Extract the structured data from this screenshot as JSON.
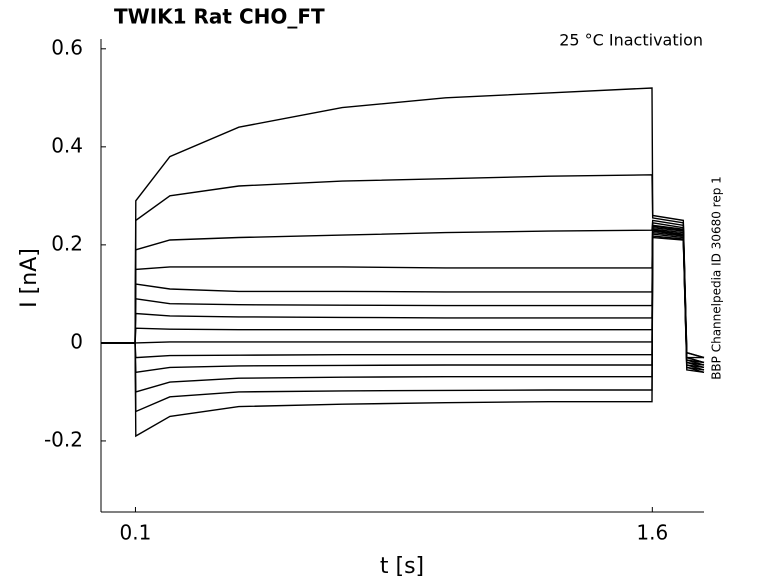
{
  "chart_data": {
    "type": "line",
    "title": "TWIK1  Rat  CHO_FT",
    "annotation": "25 °C  Inactivation",
    "side_note": "BBP Channelpedia ID 30680 rep 1",
    "x_label": "t [s]",
    "y_label": "I [nA]",
    "color": "#000000",
    "xlim": [
      0,
      1.75
    ],
    "ylim": [
      -0.345,
      0.62
    ],
    "xticks": [
      0.1,
      1.6
    ],
    "yticks": [
      -0.2,
      0,
      0.2,
      0.4,
      0.6
    ],
    "x": [
      0,
      0.099,
      0.101,
      0.2,
      0.4,
      0.7,
      1.0,
      1.3,
      1.599,
      1.601,
      1.69,
      1.7,
      1.75
    ],
    "series": [
      {
        "values": [
          0,
          0,
          0.29,
          0.38,
          0.44,
          0.48,
          0.5,
          0.51,
          0.52,
          0.26,
          0.25,
          -0.02,
          -0.03
        ]
      },
      {
        "values": [
          0,
          0,
          0.25,
          0.3,
          0.32,
          0.33,
          0.335,
          0.34,
          0.343,
          0.255,
          0.245,
          -0.02,
          -0.03
        ]
      },
      {
        "values": [
          0,
          0,
          0.19,
          0.21,
          0.215,
          0.22,
          0.225,
          0.228,
          0.23,
          0.25,
          0.24,
          -0.03,
          -0.03
        ]
      },
      {
        "values": [
          0,
          0,
          0.15,
          0.155,
          0.155,
          0.155,
          0.153,
          0.153,
          0.153,
          0.245,
          0.235,
          -0.03,
          -0.04
        ]
      },
      {
        "values": [
          0,
          0,
          0.12,
          0.11,
          0.105,
          0.105,
          0.104,
          0.104,
          0.104,
          0.24,
          0.232,
          -0.03,
          -0.04
        ]
      },
      {
        "values": [
          0,
          0,
          0.09,
          0.08,
          0.078,
          0.077,
          0.076,
          0.076,
          0.076,
          0.238,
          0.23,
          -0.035,
          -0.04
        ]
      },
      {
        "values": [
          0,
          0,
          0.06,
          0.055,
          0.053,
          0.052,
          0.051,
          0.051,
          0.051,
          0.235,
          0.228,
          -0.035,
          -0.045
        ]
      },
      {
        "values": [
          0,
          0,
          0.03,
          0.028,
          0.027,
          0.027,
          0.027,
          0.027,
          0.027,
          0.232,
          0.225,
          -0.04,
          -0.045
        ]
      },
      {
        "values": [
          0,
          0,
          0,
          0.002,
          0.002,
          0.002,
          0.002,
          0.002,
          0.002,
          0.23,
          0.222,
          -0.04,
          -0.05
        ]
      },
      {
        "values": [
          0,
          0,
          -0.03,
          -0.026,
          -0.025,
          -0.024,
          -0.024,
          -0.024,
          -0.024,
          0.228,
          0.22,
          -0.045,
          -0.05
        ]
      },
      {
        "values": [
          0,
          0,
          -0.06,
          -0.05,
          -0.047,
          -0.046,
          -0.045,
          -0.045,
          -0.045,
          0.225,
          0.218,
          -0.045,
          -0.055
        ]
      },
      {
        "values": [
          0,
          0,
          -0.1,
          -0.08,
          -0.072,
          -0.07,
          -0.069,
          -0.069,
          -0.069,
          0.222,
          0.215,
          -0.05,
          -0.055
        ]
      },
      {
        "values": [
          0,
          0,
          -0.14,
          -0.11,
          -0.1,
          -0.098,
          -0.097,
          -0.096,
          -0.096,
          0.218,
          0.212,
          -0.05,
          -0.06
        ]
      },
      {
        "values": [
          0,
          0,
          -0.19,
          -0.15,
          -0.13,
          -0.125,
          -0.122,
          -0.12,
          -0.12,
          0.215,
          0.21,
          -0.055,
          -0.06
        ]
      }
    ]
  }
}
